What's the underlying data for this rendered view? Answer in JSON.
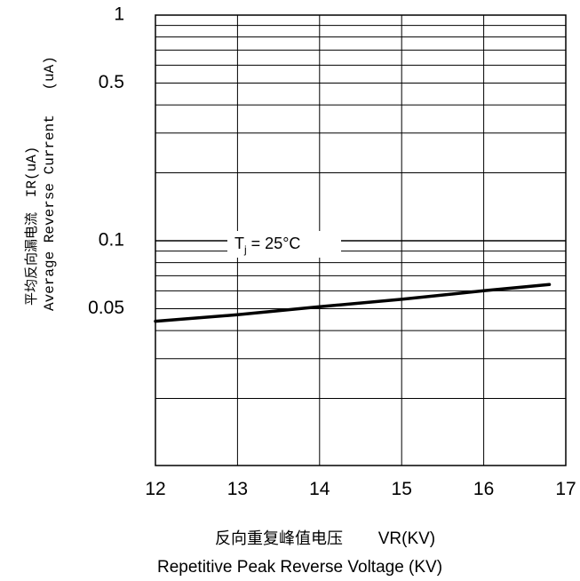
{
  "chart_data": {
    "type": "line",
    "title": "",
    "xlabel_cn": "反向重复峰值电压",
    "xlabel_symbol": "VR(KV)",
    "xlabel": "Repetitive Peak Reverse Voltage (KV)",
    "ylabel_cn": "平均反向漏电流",
    "ylabel_symbol": "IR(uA)",
    "ylabel": "Average Reverse Current",
    "ylabel_unit": "(uA)",
    "xlim": [
      12,
      17
    ],
    "ylim": [
      0.01,
      1
    ],
    "yscale": "log",
    "grid": true,
    "x_ticks": [
      "12",
      "13",
      "14",
      "15",
      "16",
      "17"
    ],
    "y_ticks": [
      {
        "value": 1,
        "label": "1"
      },
      {
        "value": 0.5,
        "label": "0.5"
      },
      {
        "value": 0.1,
        "label": "0.1"
      },
      {
        "value": 0.05,
        "label": "0.05"
      }
    ],
    "annotation": {
      "text_main": "T",
      "text_sub": "j",
      "text_rest": " = 25°C"
    },
    "series": [
      {
        "x": [
          12.0,
          13.0,
          14.0,
          15.0,
          16.0,
          16.8
        ],
        "y": [
          0.044,
          0.047,
          0.051,
          0.055,
          0.06,
          0.064
        ]
      }
    ]
  }
}
